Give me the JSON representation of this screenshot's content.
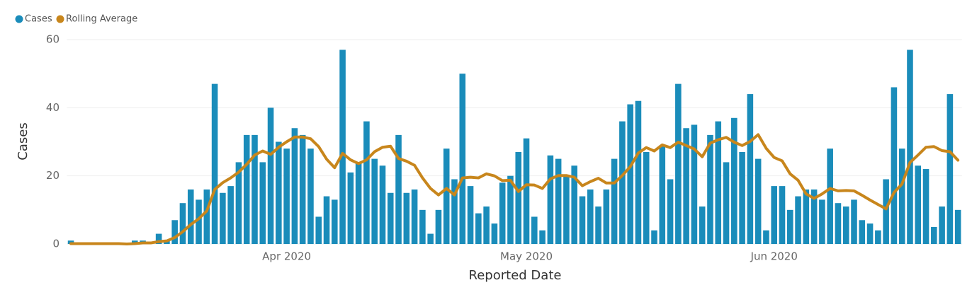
{
  "chart_data": {
    "type": "bar",
    "x_label": "Reported Date",
    "y_label": "Cases",
    "categories": [
      null,
      null,
      null,
      null,
      null,
      null,
      null,
      null,
      null,
      null,
      null,
      null,
      null,
      null,
      null,
      null,
      null,
      null,
      null,
      null,
      null,
      null,
      null,
      null,
      null,
      null,
      null,
      "Apr 2020",
      null,
      null,
      null,
      null,
      null,
      null,
      null,
      null,
      null,
      null,
      null,
      null,
      null,
      null,
      null,
      null,
      null,
      null,
      null,
      null,
      null,
      null,
      null,
      null,
      null,
      null,
      null,
      null,
      null,
      "May 2020",
      null,
      null,
      null,
      null,
      null,
      null,
      null,
      null,
      null,
      null,
      null,
      null,
      null,
      null,
      null,
      null,
      null,
      null,
      null,
      null,
      null,
      null,
      null,
      null,
      null,
      null,
      null,
      null,
      null,
      null,
      "Jun 2020",
      null,
      null,
      null,
      null,
      null,
      null,
      null,
      null,
      null,
      null,
      null,
      null,
      null,
      null,
      null,
      null,
      null,
      null,
      null,
      null,
      null,
      null,
      null
    ],
    "series": [
      {
        "name": "Cases",
        "type": "bar",
        "color": "#1a8cba",
        "values": [
          1,
          0,
          0,
          0,
          0,
          0,
          0,
          0,
          1,
          1,
          0,
          3,
          1,
          7,
          12,
          16,
          13,
          16,
          47,
          15,
          17,
          24,
          32,
          32,
          24,
          40,
          30,
          28,
          34,
          32,
          28,
          8,
          14,
          13,
          57,
          21,
          24,
          36,
          25,
          23,
          15,
          32,
          15,
          16,
          10,
          3,
          10,
          28,
          19,
          50,
          17,
          9,
          11,
          6,
          18,
          20,
          27,
          31,
          8,
          4,
          26,
          25,
          20,
          23,
          14,
          16,
          11,
          16,
          25,
          36,
          41,
          42,
          27,
          4,
          29,
          19,
          47,
          34,
          35,
          11,
          32,
          36,
          24,
          37,
          27,
          44,
          25,
          4,
          17,
          17,
          10,
          14,
          16,
          16,
          13,
          28,
          12,
          11,
          13,
          7,
          6,
          4,
          19,
          46,
          28,
          57,
          23,
          22,
          5,
          11,
          44,
          10
        ]
      },
      {
        "name": "Rolling Average",
        "type": "line",
        "color": "#c8861c",
        "values": [
          0.1,
          0.1,
          0.1,
          0.1,
          0.1,
          0.1,
          0.1,
          0,
          0.1,
          0.3,
          0.3,
          0.7,
          0.9,
          1.9,
          3.6,
          5.7,
          7.4,
          9.7,
          16.0,
          18.0,
          19.4,
          21.1,
          23.4,
          26.1,
          27.3,
          26.3,
          28.4,
          30.0,
          31.4,
          31.4,
          30.9,
          28.6,
          24.9,
          22.4,
          26.6,
          24.7,
          23.6,
          24.7,
          27.1,
          28.4,
          28.7,
          25.1,
          24.3,
          23.1,
          19.4,
          16.3,
          14.4,
          16.3,
          14.4,
          19.4,
          19.6,
          19.4,
          20.6,
          20.0,
          18.6,
          18.7,
          15.4,
          17.4,
          17.3,
          16.3,
          19.1,
          20.1,
          20.1,
          19.6,
          17.1,
          18.3,
          19.3,
          17.9,
          17.9,
          20.1,
          22.7,
          26.7,
          28.3,
          27.3,
          29.1,
          28.3,
          29.9,
          28.9,
          27.9,
          25.6,
          29.6,
          30.6,
          31.3,
          29.9,
          28.9,
          30.1,
          32.1,
          28.1,
          25.4,
          24.4,
          20.6,
          18.7,
          14.7,
          13.4,
          14.7,
          16.3,
          15.6,
          15.7,
          15.6,
          14.3,
          12.9,
          11.6,
          10.3,
          15.1,
          17.6,
          23.9,
          26.1,
          28.4,
          28.6,
          27.4,
          27.1,
          24.6
        ]
      }
    ],
    "ylim": [
      0,
      60
    ],
    "yticks": [
      0,
      20,
      40,
      60
    ],
    "grid": true
  }
}
